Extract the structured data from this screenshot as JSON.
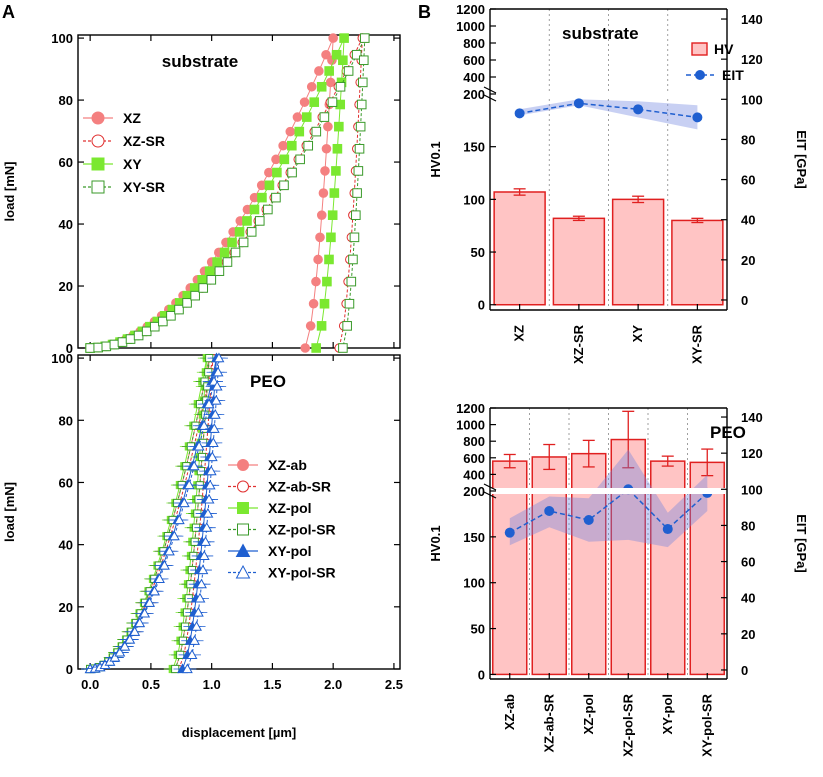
{
  "colors": {
    "xz": "#f48080",
    "xy": "#7be830",
    "blue": "#1f5fd0",
    "bar_fill": "#ffc4c4",
    "bar_edge": "#e02020",
    "band": "#6f84e0"
  },
  "panels": {
    "a": "A",
    "b": "B"
  },
  "chart_data": [
    {
      "id": "A-top",
      "type": "line",
      "title": "substrate",
      "xlabel": "displacement [µm]",
      "ylabel": "load [mN]",
      "xlim": [
        -0.1,
        2.55
      ],
      "ylim": [
        0,
        101
      ],
      "xticks": [
        "0.0",
        "0.5",
        "1.0",
        "1.5",
        "2.0",
        "2.5"
      ],
      "yticks": [
        "0",
        "20",
        "40",
        "60",
        "80",
        "100"
      ],
      "series": [
        {
          "name": "XZ",
          "color": "#f48080",
          "marker": "circle",
          "filled": true,
          "loading_exponent": 1.85,
          "max_disp": 2.0,
          "unload_end": 1.77,
          "max_load": 100
        },
        {
          "name": "XZ-SR",
          "color": "#e03030",
          "marker": "circle",
          "filled": false,
          "loading_exponent": 1.85,
          "max_disp": 2.24,
          "unload_end": 2.05,
          "max_load": 100
        },
        {
          "name": "XY",
          "color": "#7be830",
          "marker": "square",
          "filled": true,
          "loading_exponent": 1.85,
          "max_disp": 2.09,
          "unload_end": 1.86,
          "max_load": 100
        },
        {
          "name": "XY-SR",
          "color": "#3a9a2a",
          "marker": "square",
          "filled": false,
          "loading_exponent": 1.85,
          "max_disp": 2.26,
          "unload_end": 2.08,
          "max_load": 100
        }
      ]
    },
    {
      "id": "A-bottom",
      "type": "line",
      "title": "PEO",
      "xlabel": "displacement [µm]",
      "ylabel": "load [mN]",
      "xlim": [
        -0.1,
        2.55
      ],
      "ylim": [
        0,
        101
      ],
      "xticks": [
        "0.0",
        "0.5",
        "1.0",
        "1.5",
        "2.0",
        "2.5"
      ],
      "yticks": [
        "0",
        "20",
        "40",
        "60",
        "80",
        "100"
      ],
      "series": [
        {
          "name": "XZ-ab",
          "color": "#f48080",
          "marker": "circle",
          "filled": true,
          "loading_exponent": 2.0,
          "max_disp": 0.98,
          "unload_end": 0.7,
          "max_load": 100
        },
        {
          "name": "XZ-ab-SR",
          "color": "#e03030",
          "marker": "circle",
          "filled": false,
          "loading_exponent": 2.0,
          "max_disp": 1.01,
          "unload_end": 0.73,
          "max_load": 100
        },
        {
          "name": "XZ-pol",
          "color": "#7be830",
          "marker": "square",
          "filled": true,
          "loading_exponent": 2.0,
          "max_disp": 0.96,
          "unload_end": 0.68,
          "max_load": 100
        },
        {
          "name": "XZ-pol-SR",
          "color": "#3a9a2a",
          "marker": "square",
          "filled": false,
          "loading_exponent": 2.0,
          "max_disp": 0.98,
          "unload_end": 0.7,
          "max_load": 100
        },
        {
          "name": "XY-pol",
          "color": "#1f5fd0",
          "marker": "triangle",
          "filled": true,
          "loading_exponent": 2.0,
          "max_disp": 1.04,
          "unload_end": 0.76,
          "max_load": 100
        },
        {
          "name": "XY-pol-SR",
          "color": "#1f5fd0",
          "marker": "triangle",
          "filled": false,
          "loading_exponent": 2.0,
          "max_disp": 1.06,
          "unload_end": 0.8,
          "max_load": 100
        }
      ]
    },
    {
      "id": "B-top",
      "type": "bar",
      "title": "substrate",
      "categories": [
        "XZ",
        "XZ-SR",
        "XY",
        "XY-SR"
      ],
      "hv": [
        107,
        82,
        100,
        80
      ],
      "hv_err": [
        3,
        2,
        3,
        2
      ],
      "eit": [
        93,
        98,
        95,
        91
      ],
      "eit_band_low": [
        92,
        97,
        91,
        85
      ],
      "eit_band_high": [
        95,
        100,
        99,
        97
      ],
      "ylabel": "HV0.1",
      "y2label": "EIT [GPa]",
      "ylim_low": [
        -5,
        200
      ],
      "ylim_high": [
        200,
        1200
      ],
      "yticks": [
        "0",
        "50",
        "100",
        "150",
        "200",
        "400",
        "600",
        "800",
        "1000",
        "1200"
      ],
      "y2lim": [
        -5,
        145
      ],
      "y2ticks": [
        "0",
        "20",
        "40",
        "60",
        "80",
        "100",
        "120",
        "140"
      ],
      "legend": [
        "HV",
        "EIT"
      ]
    },
    {
      "id": "B-bottom",
      "type": "bar",
      "title": "PEO",
      "categories": [
        "XZ-ab",
        "XZ-ab-SR",
        "XZ-pol",
        "XZ-pol-SR",
        "XY-pol",
        "XY-pol-SR"
      ],
      "hv": [
        560,
        610,
        650,
        820,
        560,
        545
      ],
      "hv_err": [
        80,
        150,
        160,
        340,
        60,
        160
      ],
      "eit": [
        76,
        88,
        83,
        100,
        78,
        98
      ],
      "eit_band_low": [
        69,
        79,
        71,
        72,
        68,
        88
      ],
      "eit_band_high": [
        84,
        96,
        95,
        122,
        87,
        108
      ],
      "ylabel": "HV0.1",
      "y2label": "EIT [GPa]",
      "ylim_low": [
        -5,
        200
      ],
      "ylim_high": [
        200,
        1200
      ],
      "yticks": [
        "0",
        "50",
        "100",
        "150",
        "200",
        "400",
        "600",
        "800",
        "1000",
        "1200"
      ],
      "y2lim": [
        -5,
        145
      ],
      "y2ticks": [
        "0",
        "20",
        "40",
        "60",
        "80",
        "100",
        "120",
        "140"
      ]
    }
  ]
}
